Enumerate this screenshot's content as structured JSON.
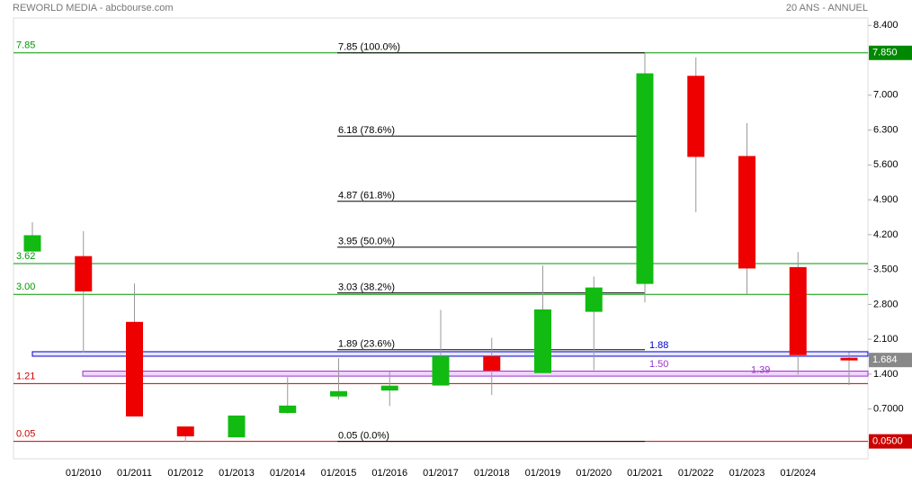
{
  "chart_data": {
    "type": "candlestick",
    "title": "REWORLD MEDIA - abcbourse.com",
    "subtitle": "20 ANS - ANNUEL",
    "categories": [
      null,
      "01/2010",
      "01/2011",
      "01/2012",
      "01/2013",
      "01/2014",
      "01/2015",
      "01/2016",
      "01/2017",
      "01/2018",
      "01/2019",
      "01/2020",
      "01/2021",
      "01/2022",
      "01/2023",
      "01/2024",
      null
    ],
    "series": {
      "open": [
        3.87,
        3.76,
        2.44,
        0.34,
        0.14,
        0.63,
        0.96,
        1.08,
        1.18,
        1.75,
        1.43,
        2.66,
        3.22,
        7.38,
        5.77,
        3.54,
        1.72
      ],
      "high": [
        4.45,
        4.27,
        3.22,
        0.34,
        0.56,
        1.34,
        1.72,
        1.45,
        2.69,
        2.13,
        3.58,
        3.36,
        7.85,
        7.76,
        6.44,
        3.85,
        1.84
      ],
      "low": [
        3.87,
        1.84,
        0.56,
        0.04,
        0.14,
        0.61,
        0.89,
        0.76,
        1.18,
        0.98,
        1.43,
        1.48,
        2.84,
        4.65,
        3.0,
        1.39,
        1.18
      ],
      "close": [
        4.18,
        3.07,
        0.56,
        0.16,
        0.56,
        0.76,
        1.05,
        1.16,
        1.75,
        1.48,
        2.69,
        3.13,
        7.43,
        5.77,
        3.53,
        1.79,
        1.684
      ]
    },
    "up_color": "#11bb11",
    "down_color": "#ee0000",
    "ylim": [
      -0.3,
      8.55
    ],
    "yticks": [
      {
        "value": 0.7,
        "label": "0.7000"
      },
      {
        "value": 1.4,
        "label": "1.400"
      },
      {
        "value": 2.1,
        "label": "2.100"
      },
      {
        "value": 2.8,
        "label": "2.800"
      },
      {
        "value": 3.5,
        "label": "3.500"
      },
      {
        "value": 4.2,
        "label": "4.200"
      },
      {
        "value": 4.9,
        "label": "4.900"
      },
      {
        "value": 5.6,
        "label": "5.600"
      },
      {
        "value": 6.3,
        "label": "6.300"
      },
      {
        "value": 7,
        "label": "7.000"
      },
      {
        "value": 8.4,
        "label": "8.400"
      }
    ],
    "levels": [
      {
        "value": 7.85,
        "label": "7.85",
        "color": "#009900"
      },
      {
        "value": 3.62,
        "label": "3.62",
        "color": "#009900"
      },
      {
        "value": 3,
        "label": "3.00",
        "color": "#009900"
      },
      {
        "value": 1.21,
        "label": "1.21",
        "color": "#cc0000"
      },
      {
        "value": 0.05,
        "label": "0.05",
        "color": "#cc0000"
      }
    ],
    "fibonacci": [
      {
        "value": 7.85,
        "label": "7.85  (100.0%)"
      },
      {
        "value": 6.18,
        "label": "6.18  (78.6%)"
      },
      {
        "value": 4.87,
        "label": "4.87  (61.8%)"
      },
      {
        "value": 3.95,
        "label": "3.95  (50.0%)"
      },
      {
        "value": 3.03,
        "label": "3.03  (38.2%)"
      },
      {
        "value": 1.89,
        "label": "1.89  (23.6%)"
      },
      {
        "value": 0.05,
        "label": "0.05  (0.0%)"
      }
    ],
    "zones": [
      {
        "from": 1.76,
        "to": 1.85,
        "color": "#0000cc",
        "fill": "#e6e6ff",
        "labels": [
          {
            "value": 1.88,
            "label": "1.88"
          }
        ]
      },
      {
        "from": 1.36,
        "to": 1.46,
        "color": "#9933cc",
        "fill": "#f2d4ff",
        "labels": [
          {
            "value": 1.5,
            "label": "1.50"
          },
          {
            "value": 1.39,
            "label": "1.39"
          }
        ]
      }
    ],
    "tags": [
      {
        "value": 7.85,
        "label": "7.850",
        "color": "#008800"
      },
      {
        "value": 1.684,
        "label": "1.684",
        "color": "#888888"
      },
      {
        "value": 0.05,
        "label": "0.0500",
        "color": "#cc0000"
      }
    ]
  }
}
